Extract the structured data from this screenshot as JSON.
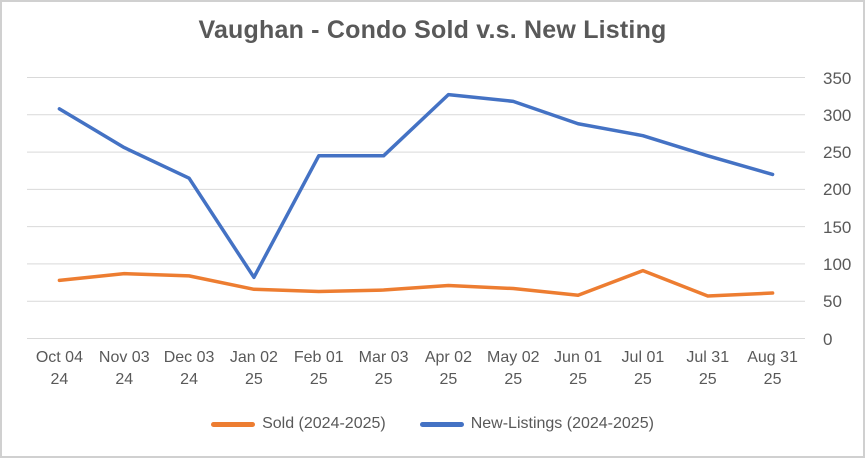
{
  "chart_data": {
    "type": "line",
    "title": "Vaughan - Condo Sold v.s. New Listing",
    "categories": [
      "Oct 04 24",
      "Nov 03 24",
      "Dec 03 24",
      "Jan 02 25",
      "Feb 01 25",
      "Mar 03 25",
      "Apr 02 25",
      "May 02 25",
      "Jun 01 25",
      "Jul 01 25",
      "Jul 31 25",
      "Aug 31 25"
    ],
    "series": [
      {
        "name": "Sold (2024-2025)",
        "color": "#ED7D31",
        "values": [
          78,
          87,
          84,
          66,
          63,
          65,
          71,
          67,
          58,
          91,
          57,
          61
        ]
      },
      {
        "name": "New-Listings (2024-2025)",
        "color": "#4472C4",
        "values": [
          308,
          256,
          215,
          82,
          245,
          245,
          327,
          318,
          288,
          272,
          245,
          220
        ]
      }
    ],
    "xlabel": "",
    "ylabel": "",
    "ylim": [
      0,
      350
    ],
    "ytick_step": 50,
    "yticks": [
      "0",
      "50",
      "100",
      "150",
      "200",
      "250",
      "300",
      "350"
    ],
    "grid": "horizontal",
    "legend_position": "bottom",
    "colors": {
      "title_text": "#595959",
      "axis_text": "#595959",
      "gridline": "#D9D9D9",
      "background": "#FFFFFF",
      "border": "#D0D0D0"
    }
  }
}
